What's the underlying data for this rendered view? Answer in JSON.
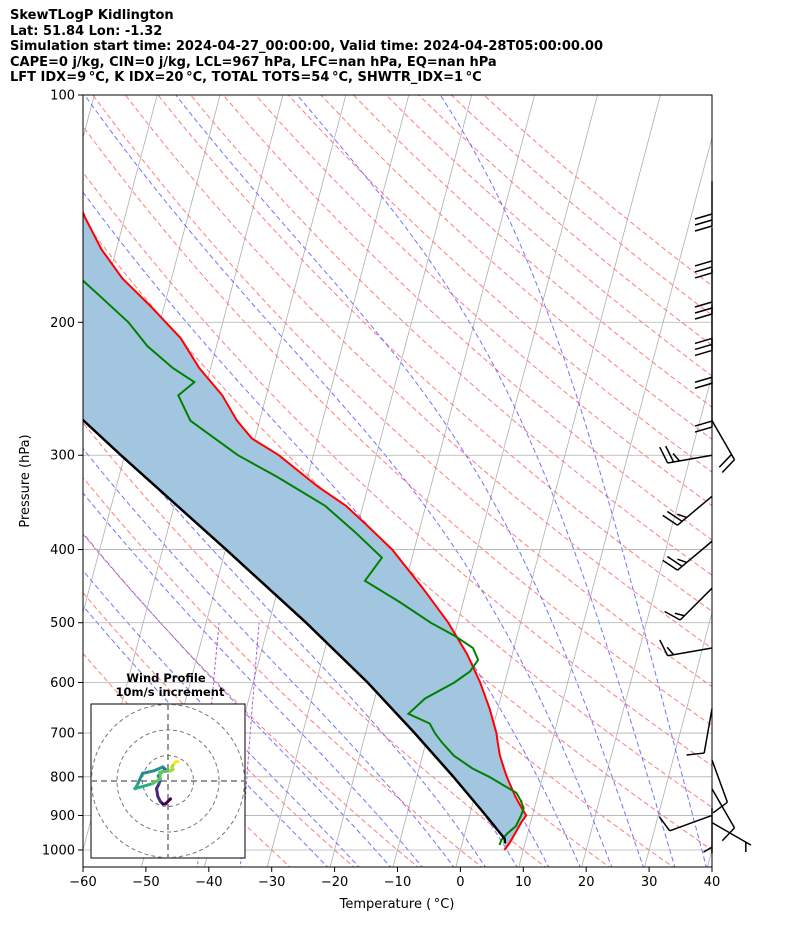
{
  "header": {
    "line1": "SkewTLogP Kidlington",
    "line2": "Lat: 51.84   Lon: -1.32",
    "line3": "Simulation start time: 2024-04-27_00:00:00, Valid time: 2024-04-28T05:00:00.00",
    "line4": "CAPE=0 j/kg, CIN=0 j/kg, LCL=967 hPa, LFC=nan hPa, EQ=nan hPa",
    "line5": "LFT IDX=9 °C, K IDX=20 °C, TOTAL TOTS=54 °C, SHWTR_IDX=1 °C"
  },
  "chart_data": {
    "type": "line",
    "title": "SkewTLogP Kidlington",
    "xlabel": "Temperature ( °C)",
    "ylabel": "Pressure (hPa)",
    "xlim": [
      -60,
      40
    ],
    "ylim": [
      1040,
      100
    ],
    "x_ticks": [
      -60,
      -50,
      -40,
      -30,
      -20,
      -10,
      0,
      10,
      20,
      30,
      40
    ],
    "x_tick_labels": [
      "−60",
      "−50",
      "−40",
      "−30",
      "−20",
      "−10",
      "0",
      "10",
      "20",
      "30",
      "40"
    ],
    "y_ticks": [
      100,
      200,
      300,
      400,
      500,
      600,
      700,
      800,
      900,
      1000
    ],
    "y_tick_labels": [
      "100",
      "200",
      "300",
      "400",
      "500",
      "600",
      "700",
      "800",
      "900",
      "1000"
    ],
    "skew_px_per_log_unit": 200,
    "series": [
      {
        "name": "Temperature",
        "color": "#ff0000",
        "p": [
          1000,
          980,
          950,
          920,
          900,
          880,
          850,
          820,
          800,
          780,
          750,
          720,
          700,
          650,
          600,
          550,
          500,
          450,
          400,
          370,
          350,
          330,
          300,
          285,
          270,
          250,
          230,
          210,
          190,
          175,
          160,
          145,
          130,
          115,
          100
        ],
        "t": [
          7,
          7.5,
          8,
          8.5,
          9,
          8,
          6.5,
          5.2,
          4.3,
          3.5,
          2.3,
          1.4,
          0.8,
          -1.3,
          -3.9,
          -7.2,
          -11.5,
          -17,
          -23.5,
          -28.8,
          -32.7,
          -38,
          -45.5,
          -50.5,
          -53.6,
          -57,
          -61.8,
          -66,
          -72.3,
          -77.8,
          -82.4,
          -86.4,
          -90.2,
          -94.5,
          -98.5
        ]
      },
      {
        "name": "Dewpoint",
        "color": "#008000",
        "p": [
          985,
          970,
          950,
          930,
          900,
          880,
          860,
          840,
          820,
          800,
          780,
          750,
          720,
          700,
          680,
          660,
          630,
          600,
          580,
          560,
          540,
          520,
          500,
          470,
          440,
          410,
          380,
          350,
          320,
          300,
          270,
          250,
          240,
          230,
          215,
          200,
          185,
          170,
          150,
          130,
          115,
          100
        ],
        "t": [
          6,
          6.1,
          6.8,
          7.8,
          8.2,
          8.3,
          7.5,
          6.5,
          4,
          1.5,
          -1.5,
          -5,
          -7.5,
          -9,
          -10.2,
          -14,
          -12,
          -8,
          -6,
          -5.2,
          -6.5,
          -10,
          -14.3,
          -20,
          -26.5,
          -24.8,
          -30,
          -36,
          -45,
          -52,
          -61,
          -64,
          -62,
          -66,
          -71,
          -75,
          -80.5,
          -86.5,
          -93.8,
          -99,
          -103,
          -107
        ]
      },
      {
        "name": "Parcel",
        "color": "#000000",
        "p": [
          980,
          967,
          900,
          800,
          700,
          600,
          500,
          400,
          300,
          200,
          150,
          100
        ],
        "t": [
          6.8,
          6.6,
          2.6,
          -4.2,
          -12.2,
          -21.8,
          -34.1,
          -49.9,
          -70.6,
          -99,
          -115.8,
          -136.2
        ]
      }
    ],
    "shaded_area": {
      "between": [
        "Temperature",
        "Parcel"
      ],
      "color": "#a3c6e0"
    },
    "background_lines": {
      "isotherms_color": "#b0b0b0",
      "dry_adiabats_color": "#ff6e6e",
      "moist_adiabats_color": "#5a5aff",
      "mixing_ratio_color": "#b05ad0"
    },
    "wind_barbs": [
      {
        "p": 130,
        "spd": 30,
        "dir": 180
      },
      {
        "p": 150,
        "spd": 30,
        "dir": 180
      },
      {
        "p": 170,
        "spd": 30,
        "dir": 180
      },
      {
        "p": 190,
        "spd": 30,
        "dir": 180
      },
      {
        "p": 210,
        "spd": 20,
        "dir": 180
      },
      {
        "p": 240,
        "spd": 20,
        "dir": 180
      },
      {
        "p": 270,
        "spd": 20,
        "dir": 150
      },
      {
        "p": 300,
        "spd": 25,
        "dir": 260
      },
      {
        "p": 340,
        "spd": 25,
        "dir": 230
      },
      {
        "p": 390,
        "spd": 25,
        "dir": 230
      },
      {
        "p": 450,
        "spd": 15,
        "dir": 225
      },
      {
        "p": 540,
        "spd": 15,
        "dir": 260
      },
      {
        "p": 650,
        "spd": 10,
        "dir": 190
      },
      {
        "p": 760,
        "spd": 10,
        "dir": 160
      },
      {
        "p": 830,
        "spd": 10,
        "dir": 150
      },
      {
        "p": 880,
        "spd": 5,
        "dir": 180
      },
      {
        "p": 900,
        "spd": 10,
        "dir": 250
      },
      {
        "p": 920,
        "spd": 5,
        "dir": 120
      }
    ],
    "wind_profile": {
      "title_line1": "Wind Profile",
      "title_line2": "10m/s increment",
      "rings_ms": [
        10,
        20,
        30
      ],
      "u": [
        1,
        -1,
        -2,
        -3,
        -4,
        -4.5,
        -3.5,
        -3,
        -3.8,
        -2.5,
        -1,
        -2,
        -5.5,
        -10,
        -12,
        -13,
        -6,
        -3,
        -3.2,
        1,
        2,
        1.5,
        2.5,
        3,
        4
      ],
      "v": [
        -7,
        -9,
        -9,
        -8,
        -6,
        -3,
        -1,
        0.5,
        2,
        3.5,
        4.5,
        5.5,
        4,
        3,
        -1.5,
        -3,
        -1,
        0.8,
        3.5,
        4,
        4.5,
        5.5,
        7,
        7.5,
        7.6
      ]
    }
  }
}
